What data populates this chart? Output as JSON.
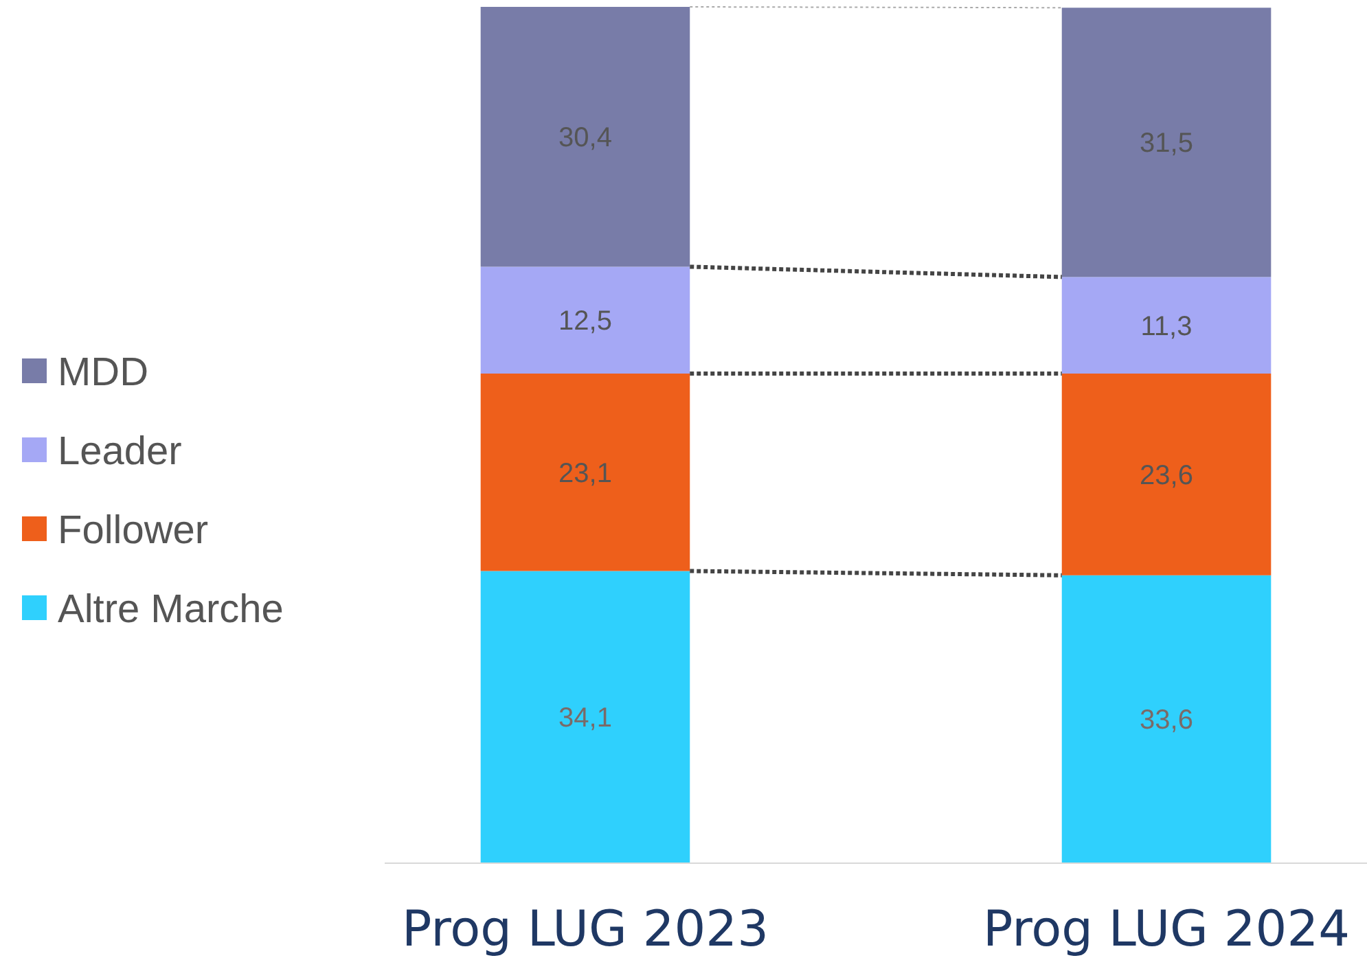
{
  "chart_data": {
    "type": "bar",
    "stacked": true,
    "legend": "left",
    "categories": [
      "Prog LUG 2023",
      "Prog LUG 2024"
    ],
    "series": [
      {
        "name": "Altre Marche",
        "color": "#2fd0fd",
        "values": [
          34.1,
          33.6
        ],
        "value_labels": [
          "34,1",
          "33,6"
        ]
      },
      {
        "name": "Follower",
        "color": "#ee5f1b",
        "values": [
          23.1,
          23.6
        ],
        "value_labels": [
          "23,1",
          "23,6"
        ]
      },
      {
        "name": "Leader",
        "color": "#a5a8f5",
        "values": [
          12.5,
          11.3
        ],
        "value_labels": [
          "12,5",
          "11,3"
        ]
      },
      {
        "name": "MDD",
        "color": "#787ca8",
        "values": [
          30.4,
          31.5
        ],
        "value_labels": [
          "30,4",
          "31,5"
        ]
      }
    ]
  }
}
